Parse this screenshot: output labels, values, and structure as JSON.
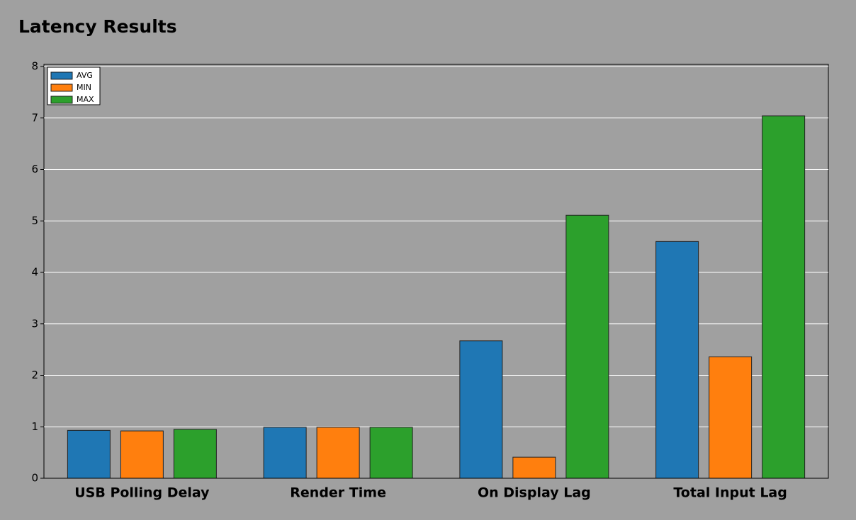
{
  "chart_data": {
    "type": "bar",
    "title": "Latency Results",
    "categories": [
      "USB Polling Delay",
      "Render Time",
      "On Display Lag",
      "Total Input Lag"
    ],
    "series": [
      {
        "name": "AVG",
        "color": "#1f77b4",
        "values": [
          0.93,
          0.99,
          2.67,
          4.6
        ]
      },
      {
        "name": "MIN",
        "color": "#ff7f0e",
        "values": [
          0.92,
          0.99,
          0.41,
          2.36
        ]
      },
      {
        "name": "MAX",
        "color": "#2ca02c",
        "values": [
          0.95,
          0.99,
          5.11,
          7.04
        ]
      }
    ],
    "ylim": [
      0,
      8
    ],
    "yticks": [
      0,
      1,
      2,
      3,
      4,
      5,
      6,
      7,
      8
    ],
    "grid": true,
    "legend": "upper left"
  }
}
